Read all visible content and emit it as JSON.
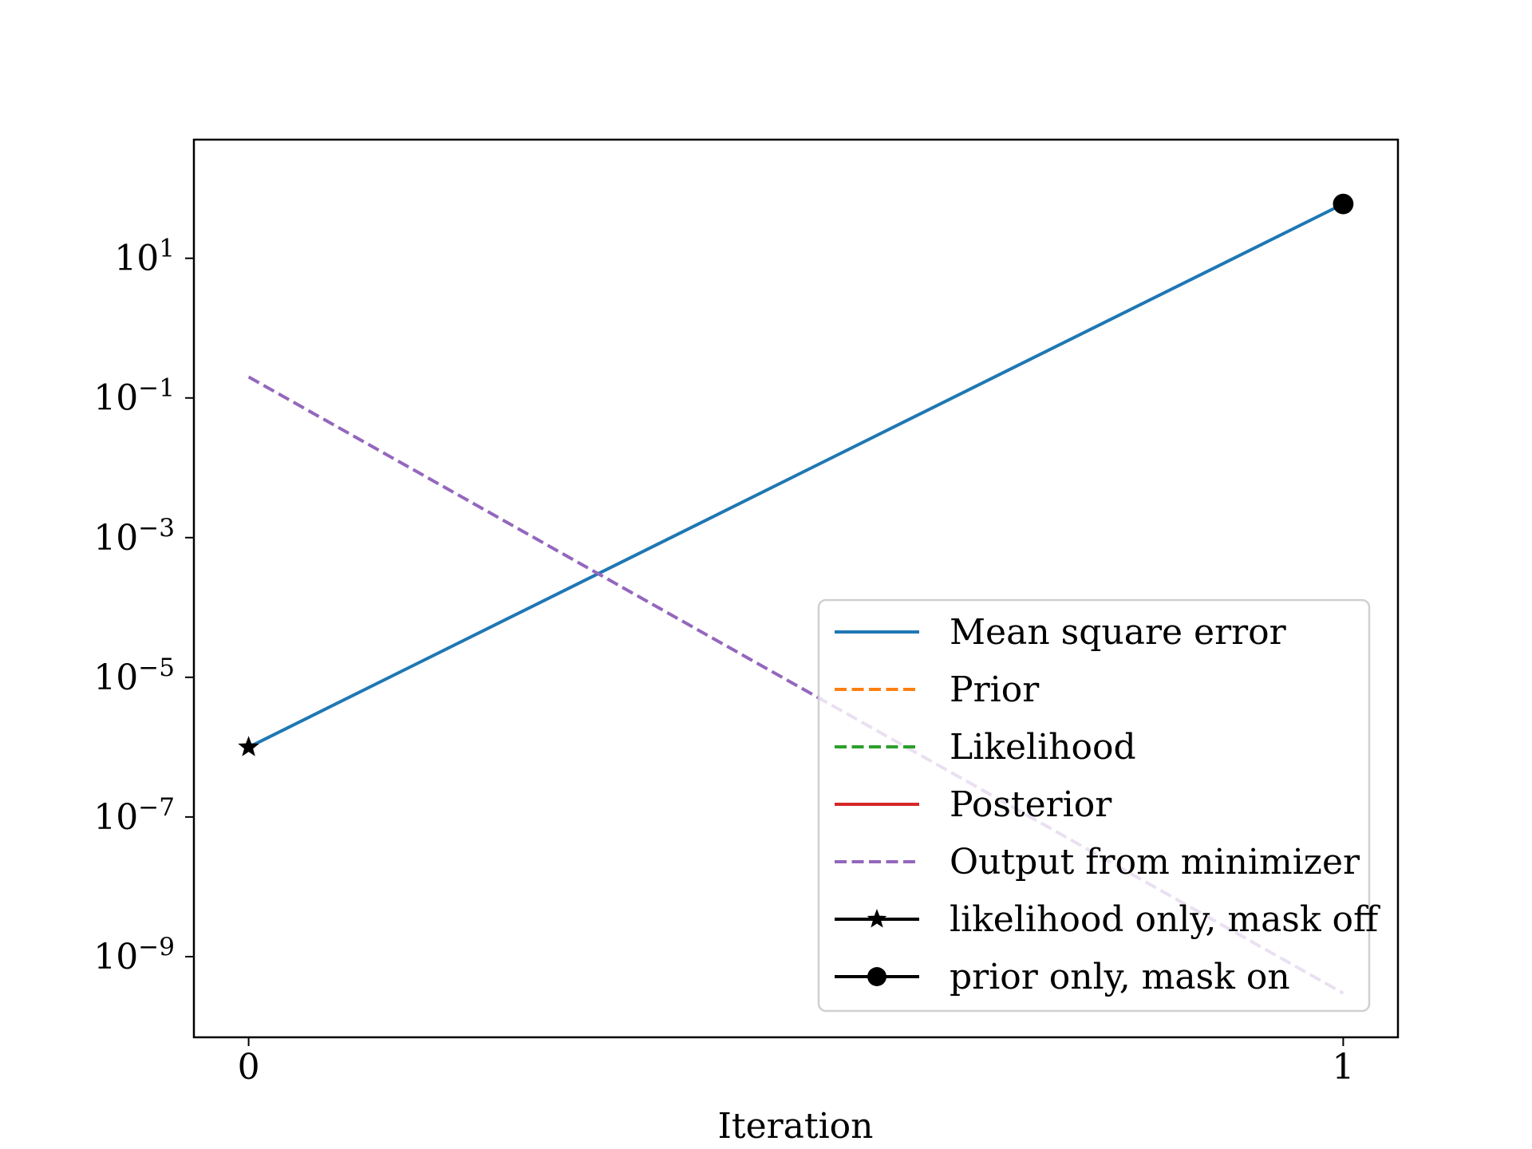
{
  "chart_data": {
    "type": "line",
    "title": "",
    "xlabel": "Iteration",
    "ylabel": "",
    "yscale": "log",
    "x_ticks": [
      0,
      1
    ],
    "x_tick_labels": [
      "0",
      "1"
    ],
    "y_ticks": [
      10,
      0.1,
      0.001,
      1e-05,
      1e-07,
      1e-09
    ],
    "y_tick_labels": [
      {
        "base": "10",
        "exp": "1"
      },
      {
        "base": "10",
        "exp": "−1"
      },
      {
        "base": "10",
        "exp": "−3"
      },
      {
        "base": "10",
        "exp": "−5"
      },
      {
        "base": "10",
        "exp": "−7"
      },
      {
        "base": "10",
        "exp": "−9"
      }
    ],
    "xlim": [
      -0.05,
      1.05
    ],
    "ylim": [
      7e-11,
      500
    ],
    "grid": false,
    "legend_position": "lower right",
    "series": [
      {
        "name": "Mean square error",
        "color": "#1f77b4",
        "style": "solid",
        "x": [
          0,
          1
        ],
        "y": [
          1e-06,
          60
        ]
      },
      {
        "name": "Prior",
        "color": "#ff7f0e",
        "style": "dashed",
        "x": [],
        "y": []
      },
      {
        "name": "Likelihood",
        "color": "#2ca02c",
        "style": "dashed",
        "x": [],
        "y": []
      },
      {
        "name": "Posterior",
        "color": "#d62728",
        "style": "solid",
        "x": [],
        "y": []
      },
      {
        "name": "Output from minimizer",
        "color": "#9467bd",
        "style": "dashed",
        "x": [
          0,
          1
        ],
        "y": [
          0.2,
          3e-10
        ]
      },
      {
        "name": "likelihood only, mask off",
        "color": "#000000",
        "style": "solid",
        "marker": "star",
        "x": [
          0
        ],
        "y": [
          1e-06
        ]
      },
      {
        "name": "prior only, mask on",
        "color": "#000000",
        "style": "solid",
        "marker": "circle",
        "x": [
          1
        ],
        "y": [
          60
        ]
      }
    ]
  }
}
